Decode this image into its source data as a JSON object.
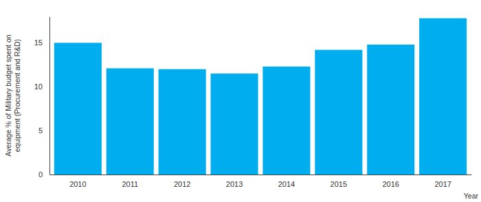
{
  "chart_data": {
    "type": "bar",
    "y_label": [
      "Average % of Military budget spent on",
      "equipment (Procurement and R&D)"
    ],
    "x_label": "Year",
    "categories": [
      "2010",
      "2011",
      "2012",
      "2013",
      "2014",
      "2015",
      "2016",
      "2017"
    ],
    "values": [
      15.0,
      12.1,
      12.0,
      11.5,
      12.3,
      14.2,
      14.8,
      17.8
    ],
    "color": "#00aeef",
    "ylim": [
      0,
      18
    ],
    "yticks": [
      0,
      5,
      10,
      15
    ],
    "grid": false
  }
}
